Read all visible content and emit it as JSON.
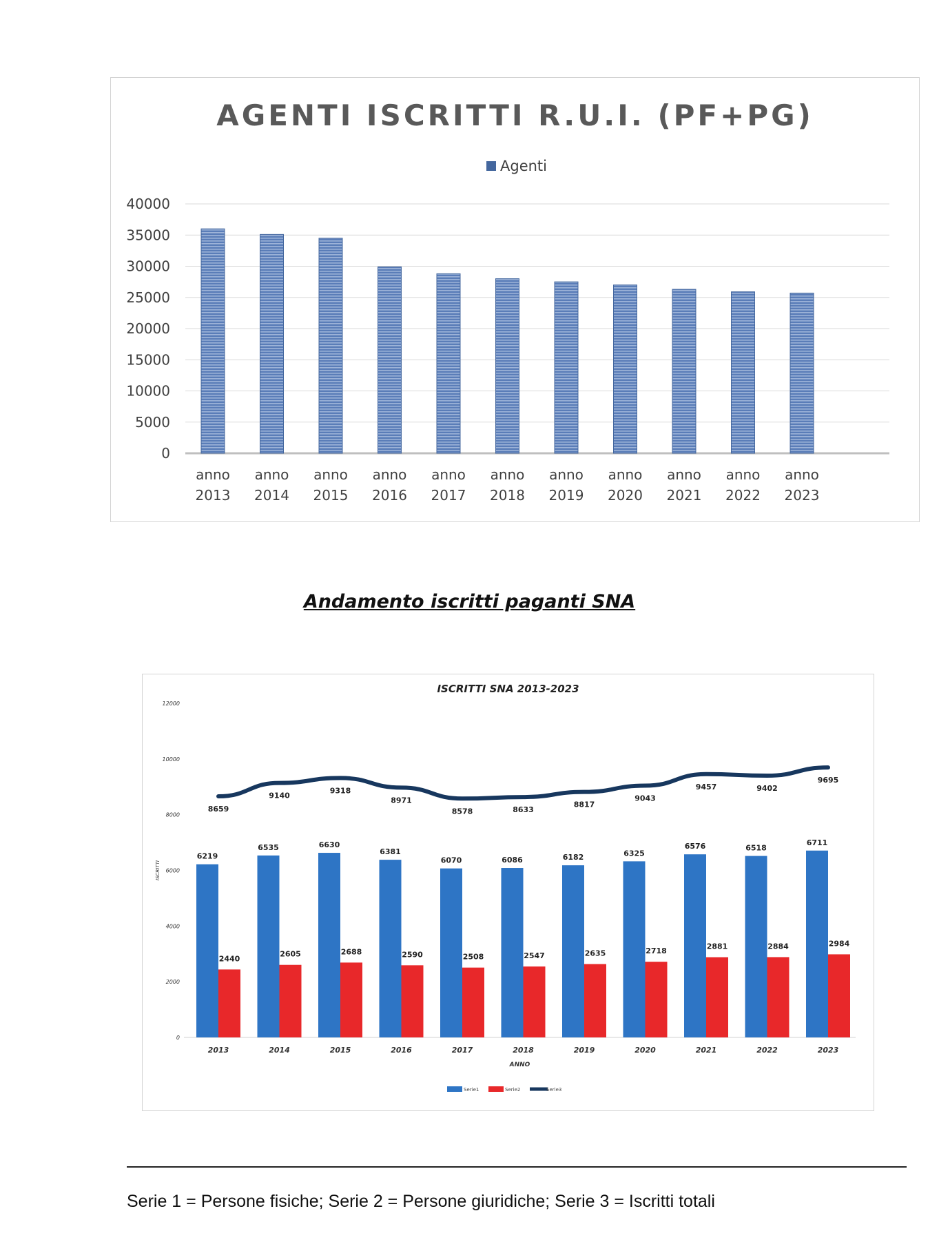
{
  "chart_data": [
    {
      "type": "bar",
      "title": "AGENTI ISCRITTI R.U.I. (PF+PG)",
      "categories": [
        [
          "anno",
          "2013"
        ],
        [
          "anno",
          "2014"
        ],
        [
          "anno",
          "2015"
        ],
        [
          "anno",
          "2016"
        ],
        [
          "anno",
          "2017"
        ],
        [
          "anno",
          "2018"
        ],
        [
          "anno",
          "2019"
        ],
        [
          "anno",
          "2020"
        ],
        [
          "anno",
          "2021"
        ],
        [
          "anno",
          "2022"
        ],
        [
          "anno",
          "2023"
        ]
      ],
      "series": [
        {
          "name": "Agenti",
          "values": [
            36000,
            35100,
            34500,
            29900,
            28800,
            28000,
            27500,
            27000,
            26300,
            25900,
            25700
          ],
          "color": "#44679e"
        }
      ],
      "ylim": [
        0,
        40000
      ],
      "yticks": [
        0,
        5000,
        10000,
        15000,
        20000,
        25000,
        30000,
        35000,
        40000
      ],
      "legend_position": "top-center",
      "grid": true
    },
    {
      "type": "bar",
      "title": "ISCRITTI SNA 2013-2023",
      "xlabel": "ANNO",
      "ylabel": "ISCRITTI",
      "categories": [
        "2013",
        "2014",
        "2015",
        "2016",
        "2017",
        "2018",
        "2019",
        "2020",
        "2021",
        "2022",
        "2023"
      ],
      "series": [
        {
          "name": "Serie1",
          "kind": "bar",
          "values": [
            6219,
            6535,
            6630,
            6381,
            6070,
            6086,
            6182,
            6325,
            6576,
            6518,
            6711
          ],
          "color": "#2e75c5"
        },
        {
          "name": "Serie2",
          "kind": "bar",
          "values": [
            2440,
            2605,
            2688,
            2590,
            2508,
            2547,
            2635,
            2718,
            2881,
            2884,
            2984
          ],
          "color": "#e8282a"
        },
        {
          "name": "Serie3",
          "kind": "line",
          "values": [
            8659,
            9140,
            9318,
            8971,
            8578,
            8633,
            8817,
            9043,
            9457,
            9402,
            9695
          ],
          "color": "#17375e"
        }
      ],
      "ylim": [
        0,
        12000
      ],
      "yticks": [
        0,
        2000,
        4000,
        6000,
        8000,
        10000,
        12000
      ],
      "legend_position": "bottom-center",
      "grid": false
    }
  ],
  "page": {
    "section_heading": "Andamento iscritti paganti SNA",
    "footnote": "Serie 1 = Persone fisiche; Serie 2 = Persone giuridiche; Serie 3 = Iscritti totali"
  }
}
